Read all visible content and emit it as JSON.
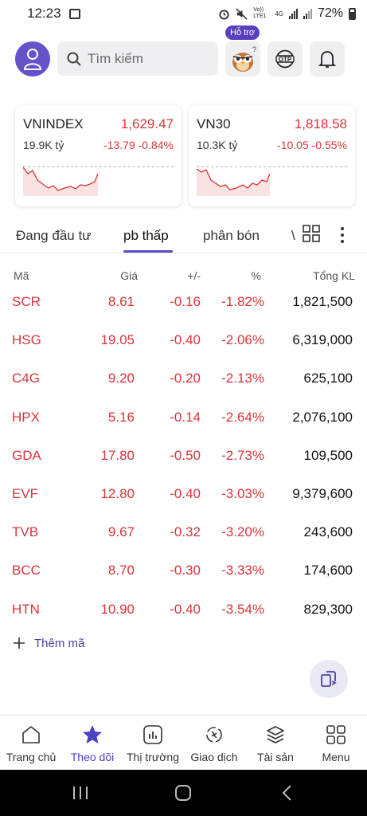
{
  "status_bar": {
    "time": "12:23",
    "network": "Vo)) LTE1",
    "net_type": "4G",
    "battery": "72%"
  },
  "header": {
    "search_placeholder": "Tìm kiếm",
    "help_badge": "Hỗ trợ",
    "otp_label": "OTP"
  },
  "indices": [
    {
      "name": "VNINDEX",
      "value": "1,629.47",
      "volume": "19.9K tỷ",
      "change": "-13.79",
      "percent": "-0.84%"
    },
    {
      "name": "VN30",
      "value": "1,818.58",
      "volume": "10.3K tỷ",
      "change": "-10.05",
      "percent": "-0.55%"
    }
  ],
  "tabs": {
    "items": [
      "Đang đầu tư",
      "pb thấp",
      "phân bón",
      "\\"
    ],
    "active": "pb thấp"
  },
  "table": {
    "headers": {
      "code": "Mã",
      "price": "Giá",
      "change": "+/-",
      "percent": "%",
      "volume": "Tổng KL"
    },
    "rows": [
      {
        "code": "SCR",
        "price": "8.61",
        "change": "-0.16",
        "percent": "-1.82%",
        "volume": "1,821,500"
      },
      {
        "code": "HSG",
        "price": "19.05",
        "change": "-0.40",
        "percent": "-2.06%",
        "volume": "6,319,000"
      },
      {
        "code": "C4G",
        "price": "9.20",
        "change": "-0.20",
        "percent": "-2.13%",
        "volume": "625,100"
      },
      {
        "code": "HPX",
        "price": "5.16",
        "change": "-0.14",
        "percent": "-2.64%",
        "volume": "2,076,100"
      },
      {
        "code": "GDA",
        "price": "17.80",
        "change": "-0.50",
        "percent": "-2.73%",
        "volume": "109,500"
      },
      {
        "code": "EVF",
        "price": "12.80",
        "change": "-0.40",
        "percent": "-3.03%",
        "volume": "9,379,600"
      },
      {
        "code": "TVB",
        "price": "9.67",
        "change": "-0.32",
        "percent": "-3.20%",
        "volume": "243,600"
      },
      {
        "code": "BCC",
        "price": "8.70",
        "change": "-0.30",
        "percent": "-3.33%",
        "volume": "174,600"
      },
      {
        "code": "HTN",
        "price": "10.90",
        "change": "-0.40",
        "percent": "-3.54%",
        "volume": "829,300"
      }
    ],
    "add_label": "Thêm mã"
  },
  "bottom_nav": {
    "items": [
      {
        "label": "Trang chủ",
        "icon": "home-icon"
      },
      {
        "label": "Theo dõi",
        "icon": "star-icon"
      },
      {
        "label": "Thị trường",
        "icon": "market-icon"
      },
      {
        "label": "Giao dịch",
        "icon": "trade-icon"
      },
      {
        "label": "Tài sản",
        "icon": "assets-icon"
      },
      {
        "label": "Menu",
        "icon": "menu-grid-icon"
      }
    ],
    "active": "Theo dõi"
  },
  "colors": {
    "down": "#d9343a",
    "accent": "#5a4dc4",
    "avatar": "#6352c9"
  }
}
